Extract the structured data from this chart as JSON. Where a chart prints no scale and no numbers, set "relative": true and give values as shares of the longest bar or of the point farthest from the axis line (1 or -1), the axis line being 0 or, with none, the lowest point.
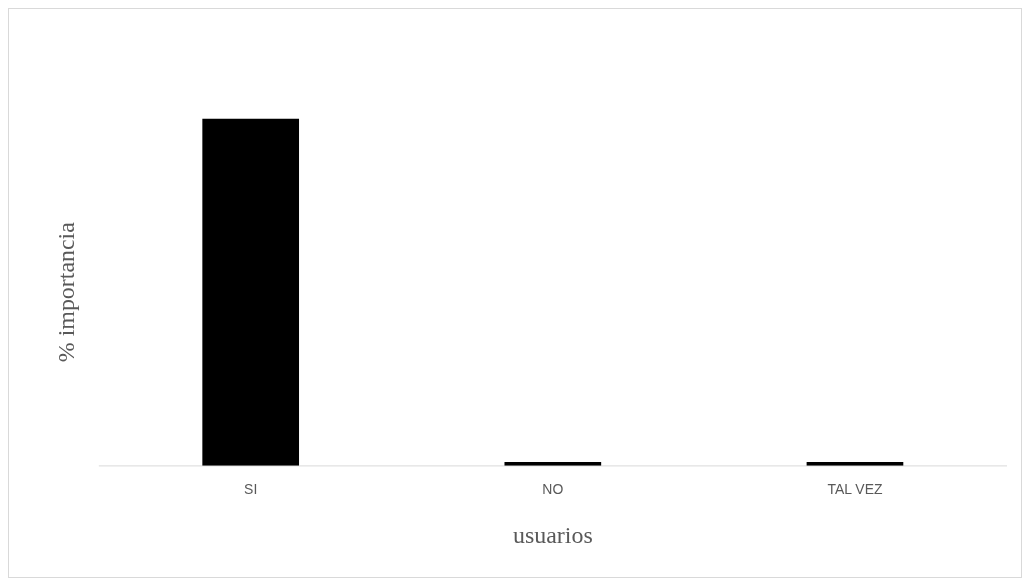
{
  "chart_data": {
    "type": "bar",
    "relative": true,
    "xlabel": "usuarios",
    "ylabel": "% importancia",
    "categories": [
      "SI",
      "NO",
      "TAL VEZ"
    ],
    "values": [
      1,
      0.011,
      0.011
    ],
    "color": "#000000",
    "grid": false,
    "legend": false
  }
}
